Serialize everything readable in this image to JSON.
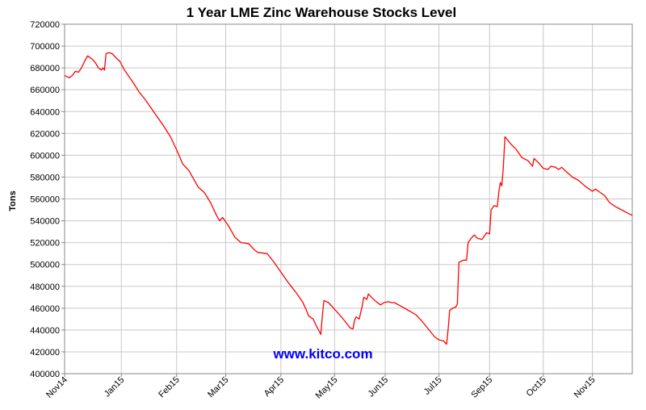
{
  "chart_data": {
    "type": "line",
    "title": "1 Year LME Zinc Warehouse Stocks Level",
    "ylabel": "Tons",
    "xlabel": "",
    "ylim": [
      400000,
      720000
    ],
    "yticks": [
      400000,
      420000,
      440000,
      460000,
      480000,
      500000,
      520000,
      540000,
      560000,
      580000,
      600000,
      620000,
      640000,
      660000,
      680000,
      700000,
      720000
    ],
    "x_range": [
      "2014-11-27",
      "2015-12-02"
    ],
    "x_tick_labels": [
      {
        "label": "Nov14",
        "date": "2014-11-27"
      },
      {
        "label": "Jan15",
        "date": "2015-01-03"
      },
      {
        "label": "Feb15",
        "date": "2015-02-08"
      },
      {
        "label": "Mar15",
        "date": "2015-03-12"
      },
      {
        "label": "Apr15",
        "date": "2015-04-17"
      },
      {
        "label": "May15",
        "date": "2015-05-22"
      },
      {
        "label": "Jun15",
        "date": "2015-06-24"
      },
      {
        "label": "Jul15",
        "date": "2015-07-29"
      },
      {
        "label": "Sep15",
        "date": "2015-08-31"
      },
      {
        "label": "Oct15",
        "date": "2015-10-05"
      },
      {
        "label": "Nov15",
        "date": "2015-11-06"
      }
    ],
    "grid": true,
    "legend": "none",
    "series": [
      {
        "color": "#ff0000",
        "points": [
          [
            "2014-11-27",
            673000
          ],
          [
            "2014-11-30",
            671000
          ],
          [
            "2014-12-02",
            673000
          ],
          [
            "2014-12-04",
            677000
          ],
          [
            "2014-12-06",
            676000
          ],
          [
            "2014-12-08",
            680000
          ],
          [
            "2014-12-10",
            686000
          ],
          [
            "2014-12-12",
            691000
          ],
          [
            "2014-12-15",
            688000
          ],
          [
            "2014-12-17",
            685000
          ],
          [
            "2014-12-19",
            680000
          ],
          [
            "2014-12-21",
            678000
          ],
          [
            "2014-12-22",
            680000
          ],
          [
            "2014-12-23",
            678000
          ],
          [
            "2014-12-24",
            693000
          ],
          [
            "2014-12-26",
            694000
          ],
          [
            "2014-12-28",
            693000
          ],
          [
            "2014-12-30",
            690000
          ],
          [
            "2015-01-02",
            686000
          ],
          [
            "2015-01-05",
            678000
          ],
          [
            "2015-01-10",
            668000
          ],
          [
            "2015-01-15",
            657000
          ],
          [
            "2015-01-18",
            652000
          ],
          [
            "2015-01-20",
            648000
          ],
          [
            "2015-01-25",
            638000
          ],
          [
            "2015-01-30",
            628000
          ],
          [
            "2015-02-04",
            617000
          ],
          [
            "2015-02-08",
            605000
          ],
          [
            "2015-02-12",
            592000
          ],
          [
            "2015-02-16",
            586000
          ],
          [
            "2015-02-20",
            576000
          ],
          [
            "2015-02-22",
            571000
          ],
          [
            "2015-02-26",
            566000
          ],
          [
            "2015-03-02",
            557000
          ],
          [
            "2015-03-06",
            545000
          ],
          [
            "2015-03-08",
            540000
          ],
          [
            "2015-03-10",
            543000
          ],
          [
            "2015-03-14",
            535000
          ],
          [
            "2015-03-18",
            525000
          ],
          [
            "2015-03-22",
            520000
          ],
          [
            "2015-03-27",
            519000
          ],
          [
            "2015-03-31",
            513000
          ],
          [
            "2015-04-02",
            511000
          ],
          [
            "2015-04-08",
            510000
          ],
          [
            "2015-04-12",
            503000
          ],
          [
            "2015-04-17",
            493000
          ],
          [
            "2015-04-22",
            483000
          ],
          [
            "2015-04-27",
            474000
          ],
          [
            "2015-05-01",
            466000
          ],
          [
            "2015-05-03",
            460000
          ],
          [
            "2015-05-05",
            453000
          ],
          [
            "2015-05-08",
            450000
          ],
          [
            "2015-05-10",
            444000
          ],
          [
            "2015-05-13",
            436000
          ],
          [
            "2015-05-14",
            453000
          ],
          [
            "2015-05-15",
            467000
          ],
          [
            "2015-05-18",
            465000
          ],
          [
            "2015-05-22",
            459000
          ],
          [
            "2015-05-27",
            451000
          ],
          [
            "2015-05-31",
            444000
          ],
          [
            "2015-06-01",
            442000
          ],
          [
            "2015-06-03",
            441000
          ],
          [
            "2015-06-04",
            449000
          ],
          [
            "2015-06-05",
            452000
          ],
          [
            "2015-06-07",
            450000
          ],
          [
            "2015-06-09",
            462000
          ],
          [
            "2015-06-10",
            470000
          ],
          [
            "2015-06-12",
            468000
          ],
          [
            "2015-06-13",
            473000
          ],
          [
            "2015-06-15",
            470000
          ],
          [
            "2015-06-18",
            466000
          ],
          [
            "2015-06-21",
            463000
          ],
          [
            "2015-06-23",
            465000
          ],
          [
            "2015-06-26",
            466000
          ],
          [
            "2015-06-28",
            465000
          ],
          [
            "2015-06-30",
            465000
          ],
          [
            "2015-07-04",
            462000
          ],
          [
            "2015-07-09",
            458000
          ],
          [
            "2015-07-14",
            454000
          ],
          [
            "2015-07-18",
            448000
          ],
          [
            "2015-07-22",
            441000
          ],
          [
            "2015-07-26",
            434000
          ],
          [
            "2015-07-29",
            431000
          ],
          [
            "2015-08-01",
            430000
          ],
          [
            "2015-08-03",
            427000
          ],
          [
            "2015-08-04",
            441000
          ],
          [
            "2015-08-05",
            458000
          ],
          [
            "2015-08-07",
            460000
          ],
          [
            "2015-08-09",
            461000
          ],
          [
            "2015-08-10",
            464000
          ],
          [
            "2015-08-11",
            502000
          ],
          [
            "2015-08-14",
            504000
          ],
          [
            "2015-08-16",
            504000
          ],
          [
            "2015-08-17",
            520000
          ],
          [
            "2015-08-19",
            524000
          ],
          [
            "2015-08-21",
            527000
          ],
          [
            "2015-08-23",
            524000
          ],
          [
            "2015-08-26",
            523000
          ],
          [
            "2015-08-28",
            527000
          ],
          [
            "2015-08-29",
            529000
          ],
          [
            "2015-08-31",
            528000
          ],
          [
            "2015-09-01",
            550000
          ],
          [
            "2015-09-03",
            554000
          ],
          [
            "2015-09-05",
            553000
          ],
          [
            "2015-09-06",
            566000
          ],
          [
            "2015-09-07",
            575000
          ],
          [
            "2015-09-08",
            572000
          ],
          [
            "2015-09-09",
            590000
          ],
          [
            "2015-09-10",
            617000
          ],
          [
            "2015-09-14",
            610000
          ],
          [
            "2015-09-17",
            606000
          ],
          [
            "2015-09-21",
            598000
          ],
          [
            "2015-09-25",
            595000
          ],
          [
            "2015-09-28",
            590000
          ],
          [
            "2015-09-29",
            597000
          ],
          [
            "2015-10-02",
            593000
          ],
          [
            "2015-10-05",
            588000
          ],
          [
            "2015-10-08",
            587000
          ],
          [
            "2015-10-10",
            590000
          ],
          [
            "2015-10-13",
            589000
          ],
          [
            "2015-10-15",
            587000
          ],
          [
            "2015-10-17",
            589000
          ],
          [
            "2015-10-20",
            585000
          ],
          [
            "2015-10-24",
            580000
          ],
          [
            "2015-10-28",
            577000
          ],
          [
            "2015-11-01",
            572000
          ],
          [
            "2015-11-04",
            569000
          ],
          [
            "2015-11-06",
            567000
          ],
          [
            "2015-11-08",
            569000
          ],
          [
            "2015-11-11",
            566000
          ],
          [
            "2015-11-14",
            563000
          ],
          [
            "2015-11-17",
            557000
          ],
          [
            "2015-11-21",
            553000
          ],
          [
            "2015-11-25",
            550000
          ],
          [
            "2015-11-29",
            547000
          ],
          [
            "2015-12-02",
            545000
          ]
        ]
      }
    ],
    "annotations": [
      {
        "text": "www.kitco.com",
        "color": "#0000ff"
      }
    ]
  }
}
